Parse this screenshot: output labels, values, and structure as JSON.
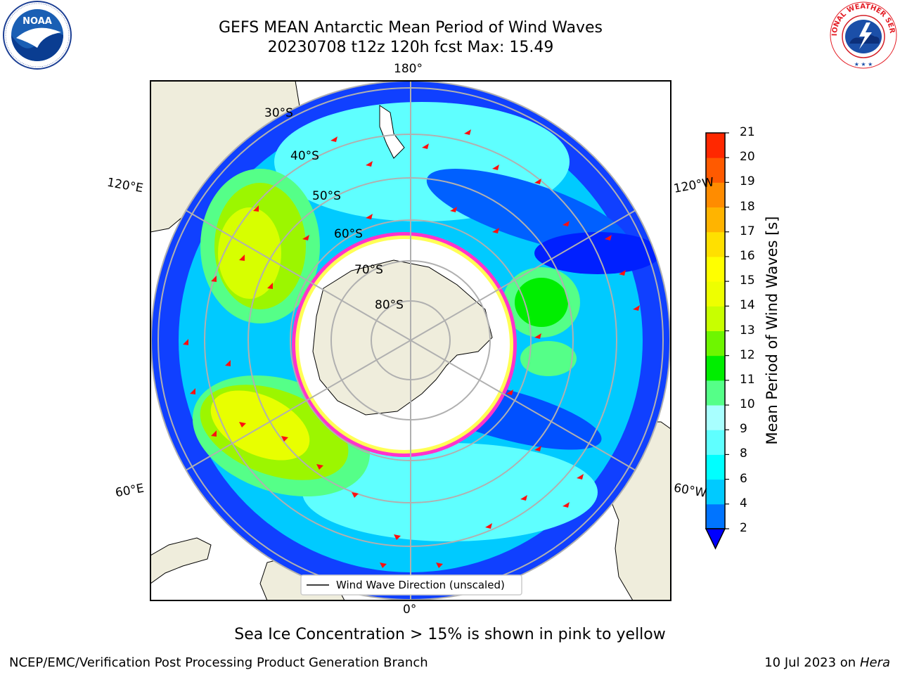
{
  "header": {
    "title_line1": "GEFS MEAN Antarctic Mean Period of Wind Waves",
    "title_line2": "20230708 t12z 120h fcst   Max: 15.49"
  },
  "logos": {
    "left": {
      "name": "noaa-logo",
      "text": "NOAA"
    },
    "right": {
      "name": "national-weather-service-logo",
      "text": "NATIONAL WEATHER SERVICE"
    }
  },
  "map": {
    "projection": "south-polar-stereographic",
    "longitude_labels": [
      "180°",
      "120°E",
      "120°W",
      "60°E",
      "60°W",
      "0°"
    ],
    "latitude_labels": [
      "30°S",
      "40°S",
      "50°S",
      "60°S",
      "70°S",
      "80°S"
    ],
    "legend_label": "Wind Wave Direction (unscaled)",
    "colors": {
      "land": "#efeddc",
      "ocean_low": "#0000ff",
      "ocean_mid": "#00ffff",
      "ocean_high": "#00e000",
      "peak": "#ffff00",
      "arrow": "#ff0000",
      "sea_ice": "#ff33cc"
    }
  },
  "colorbar": {
    "label": "Mean Period of Wind Waves [s]",
    "ticks": [
      "2",
      "4",
      "6",
      "8",
      "9",
      "10",
      "11",
      "12",
      "13",
      "14",
      "15",
      "16",
      "17",
      "18",
      "19",
      "20",
      "21"
    ],
    "colors": [
      "#0074ff",
      "#00caff",
      "#00ffff",
      "#5fffff",
      "#a8ffff",
      "#55ff88",
      "#00ee00",
      "#6ef600",
      "#c8ff00",
      "#eeff00",
      "#ffff00",
      "#ffe000",
      "#ffb400",
      "#ff8c00",
      "#ff5a00",
      "#ff2800"
    ],
    "extend_color": "#0000ff"
  },
  "footer": {
    "subtitle": "Sea Ice Concentration > 15% is shown in pink to yellow",
    "left": "NCEP/EMC/Verification Post Processing Product Generation Branch",
    "right_prefix": "10 Jul 2023 on ",
    "right_host": "Hera"
  }
}
